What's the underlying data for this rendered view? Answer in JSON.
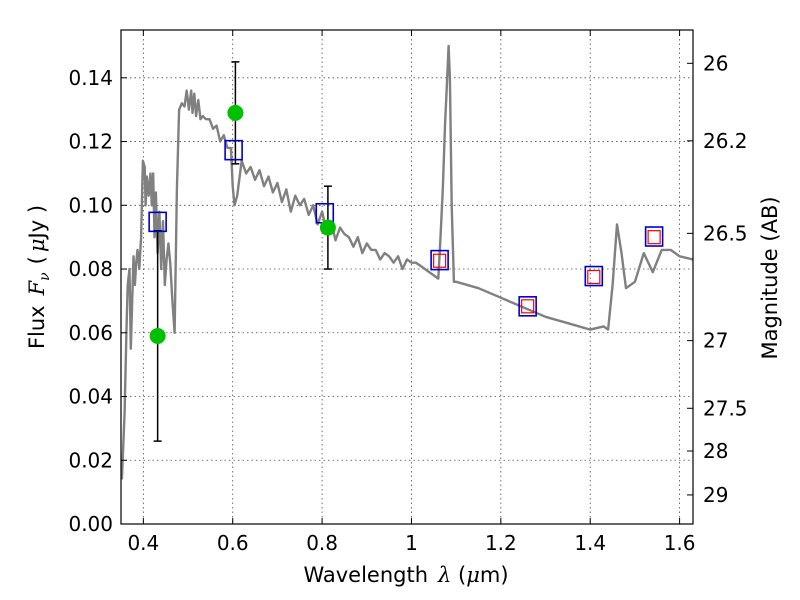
{
  "chart_data": {
    "type": "scatter",
    "xlabel_text": "Wavelength",
    "xlabel_symbol": "λ",
    "xlabel_unit_open": " (",
    "xlabel_unit_mu": "μ",
    "xlabel_unit_rest": "m)",
    "ylabel_text": "Flux",
    "ylabel_symbol": "F",
    "ylabel_sub": "ν",
    "ylabel_unit_open": "(",
    "ylabel_unit_mu": "μ",
    "ylabel_unit_rest": "Jy )",
    "y2label": "Magnitude (AB)",
    "xlim": [
      0.35,
      1.63
    ],
    "ylim": [
      0.0,
      0.155
    ],
    "x_ticks": [
      {
        "value": 0.4,
        "label": "0.4"
      },
      {
        "value": 0.6,
        "label": "0.6"
      },
      {
        "value": 0.8,
        "label": "0.8"
      },
      {
        "value": 1.0,
        "label": "1"
      },
      {
        "value": 1.2,
        "label": "1.2"
      },
      {
        "value": 1.4,
        "label": "1.4"
      },
      {
        "value": 1.6,
        "label": "1.6"
      }
    ],
    "y_ticks": [
      {
        "value": 0.0,
        "label": "0.00"
      },
      {
        "value": 0.02,
        "label": "0.02"
      },
      {
        "value": 0.04,
        "label": "0.04"
      },
      {
        "value": 0.06,
        "label": "0.06"
      },
      {
        "value": 0.08,
        "label": "0.08"
      },
      {
        "value": 0.1,
        "label": "0.10"
      },
      {
        "value": 0.12,
        "label": "0.12"
      },
      {
        "value": 0.14,
        "label": "0.14"
      }
    ],
    "y2_ticks": [
      {
        "mag": 26.0,
        "label": "26"
      },
      {
        "mag": 26.2,
        "label": "26.2"
      },
      {
        "mag": 26.5,
        "label": "26.5"
      },
      {
        "mag": 27.0,
        "label": "27"
      },
      {
        "mag": 27.5,
        "label": "27.5"
      },
      {
        "mag": 28.0,
        "label": "28"
      },
      {
        "mag": 29.0,
        "label": "29"
      }
    ],
    "grid": true,
    "model_spectrum": {
      "color": "#808080",
      "x": [
        0.352,
        0.358,
        0.362,
        0.365,
        0.369,
        0.372,
        0.375,
        0.378,
        0.381,
        0.384,
        0.387,
        0.391,
        0.395,
        0.399,
        0.403,
        0.405,
        0.408,
        0.412,
        0.416,
        0.419,
        0.422,
        0.425,
        0.428,
        0.432,
        0.436,
        0.44,
        0.444,
        0.448,
        0.452,
        0.456,
        0.46,
        0.465,
        0.47,
        0.475,
        0.48,
        0.486,
        0.492,
        0.497,
        0.502,
        0.507,
        0.51,
        0.514,
        0.518,
        0.523,
        0.528,
        0.533,
        0.54,
        0.548,
        0.556,
        0.564,
        0.572,
        0.58,
        0.588,
        0.596,
        0.6,
        0.604,
        0.61,
        0.62,
        0.63,
        0.64,
        0.65,
        0.66,
        0.67,
        0.68,
        0.69,
        0.7,
        0.71,
        0.72,
        0.73,
        0.74,
        0.75,
        0.76,
        0.77,
        0.78,
        0.79,
        0.8,
        0.81,
        0.82,
        0.83,
        0.84,
        0.85,
        0.86,
        0.87,
        0.88,
        0.89,
        0.9,
        0.91,
        0.92,
        0.93,
        0.94,
        0.95,
        0.96,
        0.97,
        0.98,
        0.99,
        1.0,
        1.01,
        1.02,
        1.03,
        1.04,
        1.05,
        1.06,
        1.065,
        1.07,
        1.075,
        1.08,
        1.083,
        1.086,
        1.09,
        1.095,
        1.1,
        1.15,
        1.2,
        1.25,
        1.3,
        1.35,
        1.4,
        1.43,
        1.44,
        1.45,
        1.46,
        1.47,
        1.48,
        1.5,
        1.52,
        1.54,
        1.56,
        1.58,
        1.6,
        1.63
      ],
      "y": [
        0.014,
        0.035,
        0.06,
        0.075,
        0.08,
        0.055,
        0.07,
        0.084,
        0.075,
        0.082,
        0.086,
        0.08,
        0.09,
        0.114,
        0.112,
        0.1,
        0.109,
        0.103,
        0.11,
        0.1,
        0.11,
        0.09,
        0.104,
        0.085,
        0.098,
        0.08,
        0.095,
        0.075,
        0.083,
        0.088,
        0.082,
        0.07,
        0.06,
        0.105,
        0.13,
        0.132,
        0.131,
        0.136,
        0.13,
        0.136,
        0.129,
        0.135,
        0.128,
        0.133,
        0.127,
        0.128,
        0.127,
        0.127,
        0.124,
        0.125,
        0.12,
        0.122,
        0.118,
        0.118,
        0.106,
        0.1,
        0.103,
        0.114,
        0.11,
        0.112,
        0.108,
        0.111,
        0.106,
        0.109,
        0.104,
        0.107,
        0.101,
        0.105,
        0.098,
        0.103,
        0.1,
        0.102,
        0.097,
        0.1,
        0.094,
        0.098,
        0.092,
        0.095,
        0.089,
        0.093,
        0.091,
        0.09,
        0.087,
        0.09,
        0.085,
        0.088,
        0.086,
        0.086,
        0.083,
        0.085,
        0.084,
        0.082,
        0.084,
        0.08,
        0.083,
        0.082,
        0.082,
        0.081,
        0.08,
        0.079,
        0.078,
        0.077,
        0.09,
        0.105,
        0.125,
        0.14,
        0.15,
        0.14,
        0.1,
        0.076,
        0.076,
        0.074,
        0.071,
        0.068,
        0.065,
        0.063,
        0.061,
        0.062,
        0.061,
        0.075,
        0.094,
        0.085,
        0.074,
        0.076,
        0.085,
        0.079,
        0.086,
        0.086,
        0.084,
        0.083
      ]
    },
    "observed": {
      "color": "#00c000",
      "points": [
        {
          "x": 0.432,
          "y": 0.059,
          "yerr_low": 0.026,
          "yerr_high": 0.092
        },
        {
          "x": 0.606,
          "y": 0.129,
          "yerr_low": 0.113,
          "yerr_high": 0.145
        },
        {
          "x": 0.813,
          "y": 0.093,
          "yerr_low": 0.08,
          "yerr_high": 0.106
        }
      ]
    },
    "model_photometry_blue": {
      "color": "#0000cc",
      "points": [
        {
          "x": 0.432,
          "y": 0.0948
        },
        {
          "x": 0.602,
          "y": 0.1173
        },
        {
          "x": 0.806,
          "y": 0.0975
        },
        {
          "x": 1.063,
          "y": 0.0828
        },
        {
          "x": 1.26,
          "y": 0.0683
        },
        {
          "x": 1.408,
          "y": 0.0778
        },
        {
          "x": 1.543,
          "y": 0.0902
        }
      ]
    },
    "model_photometry_red": {
      "color": "#ff0000",
      "points": [
        {
          "x": 1.063,
          "y": 0.0826
        },
        {
          "x": 1.26,
          "y": 0.0683
        },
        {
          "x": 1.408,
          "y": 0.0775
        },
        {
          "x": 1.543,
          "y": 0.09
        }
      ]
    }
  }
}
